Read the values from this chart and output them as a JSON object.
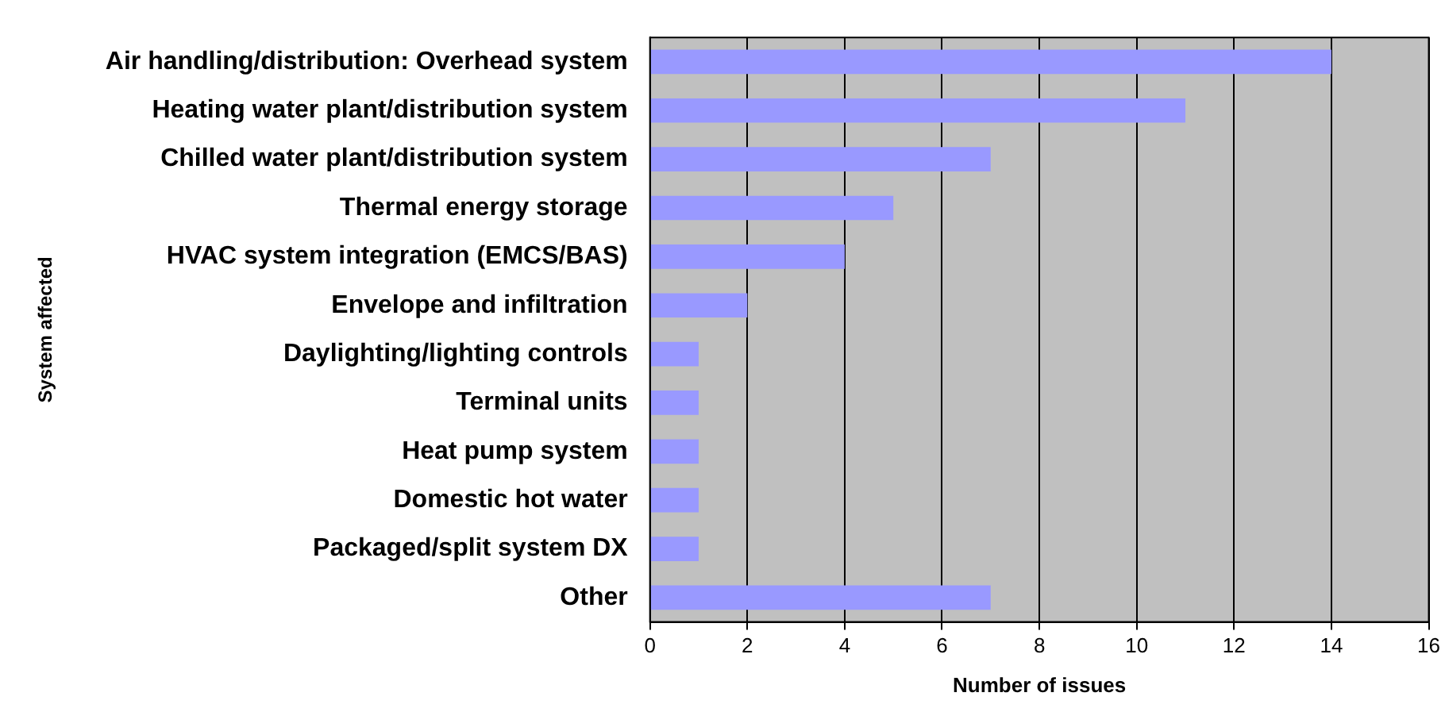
{
  "chart_data": {
    "type": "bar",
    "orientation": "horizontal",
    "xlabel": "Number of issues",
    "ylabel": "System affected",
    "categories": [
      "Air handling/distribution: Overhead system",
      "Heating water plant/distribution system",
      "Chilled water plant/distribution system",
      "Thermal energy storage",
      "HVAC system integration (EMCS/BAS)",
      "Envelope and infiltration",
      "Daylighting/lighting controls",
      "Terminal units",
      "Heat pump system",
      "Domestic hot water",
      "Packaged/split system DX",
      "Other"
    ],
    "values": [
      14,
      11,
      7,
      5,
      4,
      2,
      1,
      1,
      1,
      1,
      1,
      7
    ],
    "color": "#9999ff",
    "xlim": [
      0,
      16
    ],
    "xticks": [
      0,
      2,
      4,
      6,
      8,
      10,
      12,
      14,
      16
    ],
    "grid": "x",
    "legend": false
  }
}
